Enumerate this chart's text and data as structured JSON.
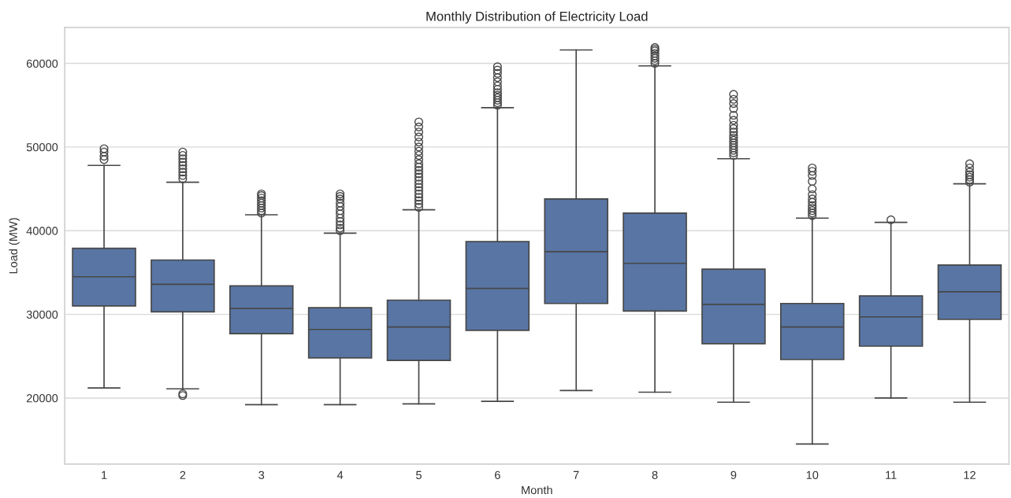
{
  "chart_data": {
    "type": "box",
    "title": "Monthly Distribution of Electricity Load",
    "xlabel": "Month",
    "ylabel": "Load (MW)",
    "categories": [
      "1",
      "2",
      "3",
      "4",
      "5",
      "6",
      "7",
      "8",
      "9",
      "10",
      "11",
      "12"
    ],
    "series": [
      {
        "color": "#5875a4",
        "boxes": [
          {
            "low": 21200,
            "q1": 31000,
            "median": 34500,
            "q3": 37900,
            "high": 47800,
            "outliers": [
              48500,
              48900,
              49400,
              49800
            ]
          },
          {
            "low": 21100,
            "q1": 30300,
            "median": 33600,
            "q3": 36500,
            "high": 45800,
            "outliers": [
              20300,
              20500,
              46200,
              46600,
              47000,
              47400,
              47800,
              48200,
              48600,
              49000,
              49400
            ]
          },
          {
            "low": 19200,
            "q1": 27700,
            "median": 30700,
            "q3": 33400,
            "high": 41900,
            "outliers": [
              42100,
              42400,
              42700,
              43000,
              43300,
              43600,
              43900,
              44200,
              44400
            ]
          },
          {
            "low": 19200,
            "q1": 24800,
            "median": 28200,
            "q3": 30800,
            "high": 39700,
            "outliers": [
              40000,
              40300,
              40700,
              41100,
              41500,
              42000,
              42400,
              42900,
              43300,
              43800,
              44100,
              44400
            ]
          },
          {
            "low": 19300,
            "q1": 24500,
            "median": 28500,
            "q3": 31700,
            "high": 42500,
            "outliers": [
              42800,
              43200,
              43600,
              44000,
              44400,
              44800,
              45200,
              45600,
              46000,
              46400,
              46800,
              47200,
              47600,
              48000,
              48500,
              49000,
              49500,
              50000,
              50600,
              51200,
              51800,
              52400,
              53000
            ]
          },
          {
            "low": 19600,
            "q1": 28100,
            "median": 33100,
            "q3": 38700,
            "high": 54700,
            "outliers": [
              55000,
              55300,
              55600,
              55900,
              56200,
              56500,
              56900,
              57300,
              57800,
              58300,
              58800,
              59200,
              59600
            ]
          },
          {
            "low": 20900,
            "q1": 31300,
            "median": 37500,
            "q3": 43800,
            "high": 61600
          },
          {
            "low": 20700,
            "q1": 30400,
            "median": 36100,
            "q3": 42100,
            "high": 59700,
            "outliers": [
              60000,
              60300,
              60600,
              60900,
              61200,
              61500,
              61700,
              61900
            ]
          },
          {
            "low": 19500,
            "q1": 26500,
            "median": 31200,
            "q3": 35400,
            "high": 48600,
            "outliers": [
              49000,
              49300,
              49600,
              49900,
              50200,
              50500,
              50800,
              51100,
              51400,
              51800,
              52200,
              52600,
              53200,
              53800,
              54600,
              55200,
              55700,
              56300
            ]
          },
          {
            "low": 14500,
            "q1": 24600,
            "median": 28500,
            "q3": 31300,
            "high": 41500,
            "outliers": [
              41800,
              42100,
              42400,
              42700,
              43000,
              43400,
              43800,
              44300,
              45000,
              45900,
              46600,
              47100,
              47500
            ]
          },
          {
            "low": 20000,
            "q1": 26200,
            "median": 29700,
            "q3": 32200,
            "high": 41000,
            "outliers": [
              41300
            ]
          },
          {
            "low": 19500,
            "q1": 29400,
            "median": 32700,
            "q3": 35900,
            "high": 45600,
            "outliers": [
              45800,
              46100,
              46400,
              46700,
              47000,
              47500,
              48000
            ]
          }
        ]
      }
    ],
    "ylim": [
      12100,
      64300
    ],
    "yticks": [
      20000,
      30000,
      40000,
      50000,
      60000
    ],
    "grid": "y",
    "legend": false
  }
}
